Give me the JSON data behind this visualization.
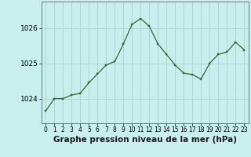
{
  "x": [
    0,
    1,
    2,
    3,
    4,
    5,
    6,
    7,
    8,
    9,
    10,
    11,
    12,
    13,
    14,
    15,
    16,
    17,
    18,
    19,
    20,
    21,
    22,
    23
  ],
  "y": [
    1023.65,
    1024.0,
    1024.0,
    1024.1,
    1024.15,
    1024.45,
    1024.7,
    1024.95,
    1025.05,
    1025.55,
    1026.1,
    1026.27,
    1026.05,
    1025.55,
    1025.25,
    1024.95,
    1024.72,
    1024.68,
    1024.55,
    1025.0,
    1025.25,
    1025.32,
    1025.6,
    1025.38
  ],
  "line_color": "#2d6a2d",
  "marker_color": "#2d6a2d",
  "bg_color": "#c8eeee",
  "grid_color": "#b0d4d4",
  "ylabel_ticks": [
    1024,
    1025,
    1026
  ],
  "xlim": [
    -0.5,
    23.5
  ],
  "ylim": [
    1023.3,
    1026.75
  ],
  "xlabel": "Graphe pression niveau de la mer (hPa)",
  "xtick_labels": [
    "0",
    "1",
    "2",
    "3",
    "4",
    "5",
    "6",
    "7",
    "8",
    "9",
    "10",
    "11",
    "12",
    "13",
    "14",
    "15",
    "16",
    "17",
    "18",
    "19",
    "20",
    "21",
    "22",
    "23"
  ],
  "xlabel_fontsize": 7.5,
  "ytick_fontsize": 6.5,
  "xtick_fontsize": 5.5
}
